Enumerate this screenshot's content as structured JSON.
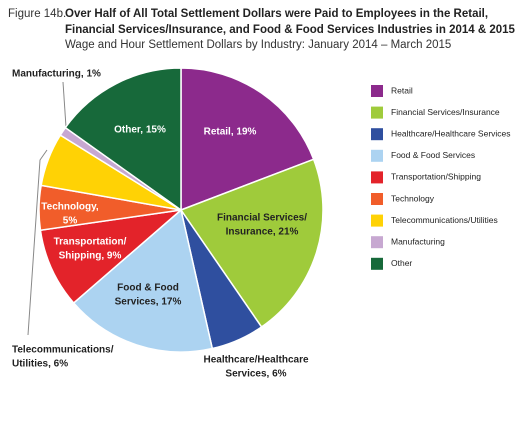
{
  "chart_data": {
    "type": "pie",
    "figure_label": "Figure 14b.",
    "title": [
      "Over Half of All Total Settlement Dollars were Paid to Employees in the Retail,",
      "Financial Services/Insurance, and Food & Food Services Industries in 2014 & 2015"
    ],
    "subtitle": "Wage and Hour Settlement Dollars by Industry: January 2014 – March 2015",
    "categories": [
      "Retail",
      "Financial Services/Insurance",
      "Healthcare/Healthcare Services",
      "Food & Food Services",
      "Transportation/Shipping",
      "Technology",
      "Telecommunications/Utilities",
      "Manufacturing",
      "Other"
    ],
    "values": [
      19,
      21,
      6,
      17,
      9,
      5,
      6,
      1,
      15
    ],
    "value_labels": [
      [
        "Retail, 19%"
      ],
      [
        "Financial Services/",
        "Insurance, 21%"
      ],
      [
        "Healthcare/Healthcare",
        "Services, 6%"
      ],
      [
        "Food & Food",
        "Services, 17%"
      ],
      [
        "Transportation/",
        "Shipping, 9%"
      ],
      [
        "Technology,",
        "5%"
      ],
      [
        "Telecommunications/",
        "Utilities, 6%"
      ],
      [
        "Manufacturing, 1%"
      ],
      [
        "Other, 15%"
      ]
    ],
    "colors": [
      "#8c2a8c",
      "#9fcb3b",
      "#2f4f9f",
      "#acd3f1",
      "#e3232a",
      "#f15d2a",
      "#ffd205",
      "#c7a8d1",
      "#17693a"
    ]
  }
}
